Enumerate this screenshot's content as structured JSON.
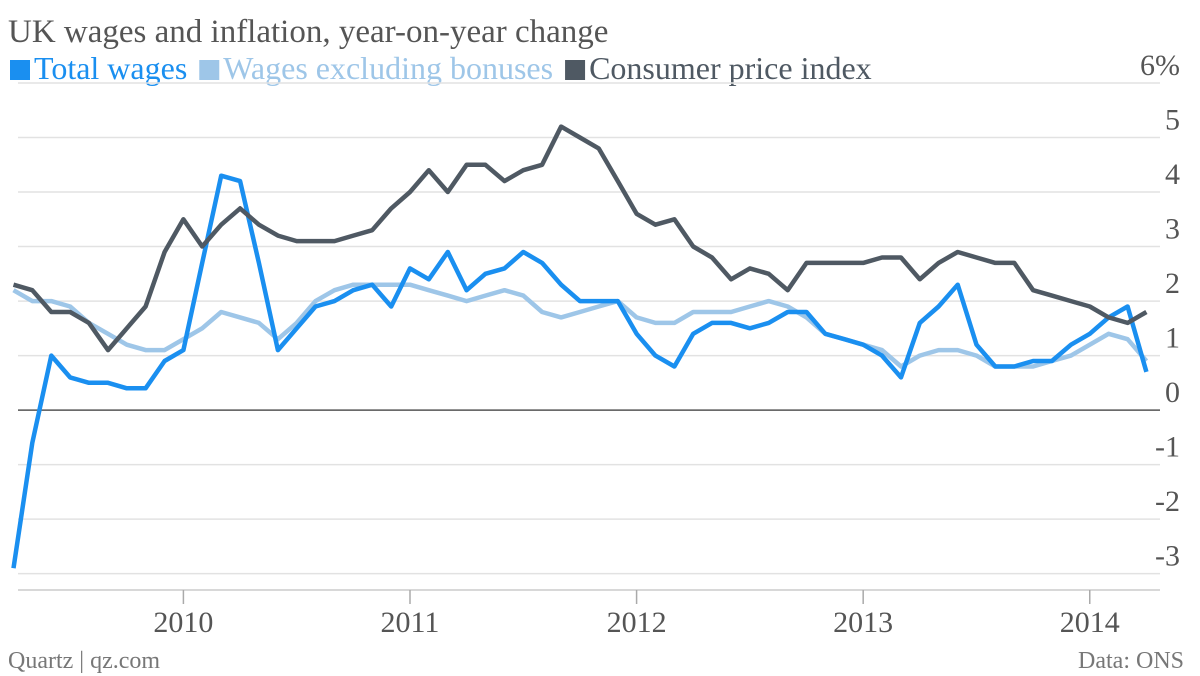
{
  "chart_data": {
    "type": "line",
    "title": "UK wages and inflation, year-on-year change",
    "source_left": "Quartz | qz.com",
    "source_right": "Data: ONS",
    "x": [
      2009.25,
      2009.333,
      2009.417,
      2009.5,
      2009.583,
      2009.667,
      2009.75,
      2009.833,
      2009.917,
      2010,
      2010.083,
      2010.167,
      2010.25,
      2010.333,
      2010.417,
      2010.5,
      2010.583,
      2010.667,
      2010.75,
      2010.833,
      2010.917,
      2011,
      2011.083,
      2011.167,
      2011.25,
      2011.333,
      2011.417,
      2011.5,
      2011.583,
      2011.667,
      2011.75,
      2011.833,
      2011.917,
      2012,
      2012.083,
      2012.167,
      2012.25,
      2012.333,
      2012.417,
      2012.5,
      2012.583,
      2012.667,
      2012.75,
      2012.833,
      2012.917,
      2013,
      2013.083,
      2013.167,
      2013.25,
      2013.333,
      2013.417,
      2013.5,
      2013.583,
      2013.667,
      2013.75,
      2013.833,
      2013.917,
      2014,
      2014.083,
      2014.167,
      2014.25
    ],
    "series": [
      {
        "name": "Total wages",
        "color": "#1a8ff0",
        "values": [
          -2.9,
          -0.6,
          1.0,
          0.6,
          0.5,
          0.5,
          0.4,
          0.4,
          0.9,
          1.1,
          2.7,
          4.3,
          4.2,
          2.7,
          1.1,
          1.5,
          1.9,
          2.0,
          2.2,
          2.3,
          1.9,
          2.6,
          2.4,
          2.9,
          2.2,
          2.5,
          2.6,
          2.9,
          2.7,
          2.3,
          2.0,
          2.0,
          2.0,
          1.4,
          1.0,
          0.8,
          1.4,
          1.6,
          1.6,
          1.5,
          1.6,
          1.8,
          1.8,
          1.4,
          1.3,
          1.2,
          1.0,
          0.6,
          1.6,
          1.9,
          2.3,
          1.2,
          0.8,
          0.8,
          0.9,
          0.9,
          1.2,
          1.4,
          1.7,
          1.9,
          0.7
        ]
      },
      {
        "name": "Wages excluding bonuses",
        "color": "#9ec6e8",
        "values": [
          2.2,
          2.0,
          2.0,
          1.9,
          1.6,
          1.4,
          1.2,
          1.1,
          1.1,
          1.3,
          1.5,
          1.8,
          1.7,
          1.6,
          1.3,
          1.6,
          2.0,
          2.2,
          2.3,
          2.3,
          2.3,
          2.3,
          2.2,
          2.1,
          2.0,
          2.1,
          2.2,
          2.1,
          1.8,
          1.7,
          1.8,
          1.9,
          2.0,
          1.7,
          1.6,
          1.6,
          1.8,
          1.8,
          1.8,
          1.9,
          2.0,
          1.9,
          1.7,
          1.4,
          1.3,
          1.2,
          1.1,
          0.8,
          1.0,
          1.1,
          1.1,
          1.0,
          0.8,
          0.8,
          0.8,
          0.9,
          1.0,
          1.2,
          1.4,
          1.3,
          0.9
        ]
      },
      {
        "name": "Consumer price index",
        "color": "#4f5963",
        "values": [
          2.3,
          2.2,
          1.8,
          1.8,
          1.6,
          1.1,
          1.5,
          1.9,
          2.9,
          3.5,
          3.0,
          3.4,
          3.7,
          3.4,
          3.2,
          3.1,
          3.1,
          3.1,
          3.2,
          3.3,
          3.7,
          4.0,
          4.4,
          4.0,
          4.5,
          4.5,
          4.2,
          4.4,
          4.5,
          5.2,
          5.0,
          4.8,
          4.2,
          3.6,
          3.4,
          3.5,
          3.0,
          2.8,
          2.4,
          2.6,
          2.5,
          2.2,
          2.7,
          2.7,
          2.7,
          2.7,
          2.8,
          2.8,
          2.4,
          2.7,
          2.9,
          2.8,
          2.7,
          2.7,
          2.2,
          2.1,
          2.0,
          1.9,
          1.7,
          1.6,
          1.8
        ]
      }
    ],
    "xlim": [
      2009.27,
      2014.31
    ],
    "xticks": [
      2010,
      2011,
      2012,
      2013,
      2014
    ],
    "ylim": [
      -3.3,
      6
    ],
    "yticks": [
      {
        "value": 6,
        "label": "6%"
      },
      5,
      4,
      3,
      2,
      1,
      0,
      -1,
      -2,
      -3
    ],
    "grid": true
  }
}
